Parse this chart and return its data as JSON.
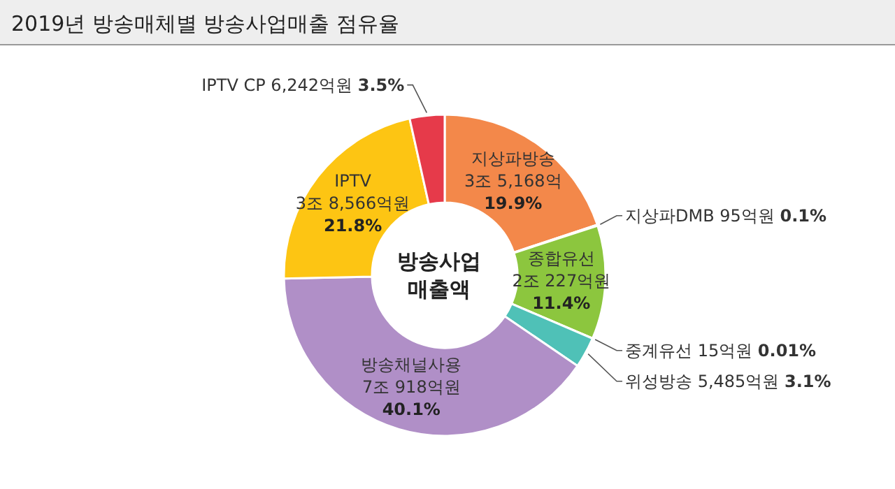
{
  "chart_data": {
    "type": "donut",
    "title": "2019년 방송매체별 방송사업매출 점유율",
    "categories": [
      "지상파방송 3조 5,168억",
      "지상파DMB 95억원",
      "종합유선 2조 227억원",
      "중계유선 15억원",
      "위성방송 5,485억원",
      "방송채널사용 7조 918억원",
      "IPTV 3조 8,566억원",
      "IPTV CP 6,242억원"
    ],
    "values": [
      19.9,
      0.1,
      11.4,
      0.01,
      3.1,
      40.1,
      21.8,
      3.5
    ],
    "value_labels": [
      "19.9%",
      "0.1%",
      "11.4%",
      "0.01%",
      "3.1%",
      "40.1%",
      "21.8%",
      "3.5%"
    ],
    "colors": [
      "#f3884a",
      "#5a9bd5",
      "#8cc63e",
      "#2e8b57",
      "#4fc1b7",
      "#b08fc7",
      "#fdc513",
      "#e63a4a"
    ],
    "annotations": [
      "방송사업 매출액"
    ]
  }
}
